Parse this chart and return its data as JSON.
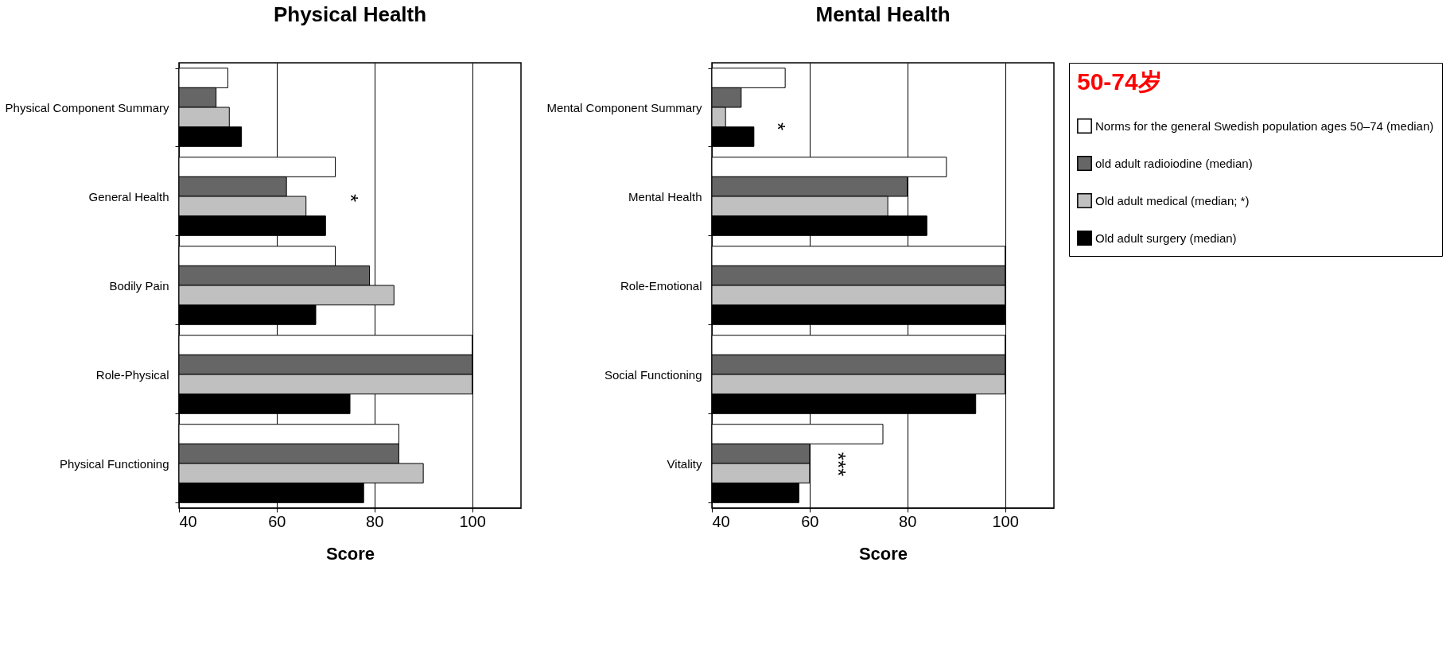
{
  "chart_data": [
    {
      "type": "bar",
      "orientation": "horizontal",
      "title": "Physical Health",
      "xlabel": "Score",
      "categories": [
        "Physical Component Summary",
        "General Health",
        "Bodily Pain",
        "Role-Physical",
        "Physical Functioning"
      ],
      "series": [
        {
          "name": "Norms for the general Swedish population ages 50–74 (median)",
          "color": "#ffffff",
          "values": [
            50,
            72,
            72,
            100,
            85
          ]
        },
        {
          "name": "old adult radioiodine (median)",
          "color": "#666666",
          "values": [
            47.6,
            62,
            79,
            100,
            85
          ]
        },
        {
          "name": "Old adult medical (median; *)",
          "color": "#c0c0c0",
          "values": [
            50.3,
            66,
            84,
            100,
            90
          ]
        },
        {
          "name": "Old adult surgery (median)",
          "color": "#000000",
          "values": [
            52.8,
            70,
            68,
            75,
            77.8
          ]
        }
      ],
      "xlim": [
        40,
        110
      ],
      "xticks": [
        40,
        60,
        80,
        100
      ],
      "grid": "x",
      "legend": "right",
      "annotations": [
        "*"
      ]
    },
    {
      "type": "bar",
      "orientation": "horizontal",
      "title": "Mental Health",
      "xlabel": "Score",
      "legend": "right",
      "legend_title": "50-74岁",
      "categories": [
        "Mental Component Summary",
        "Mental Health",
        "Role-Emotional",
        "Social Functioning",
        "Vitality"
      ],
      "series": [
        {
          "name": "Norms for the general Swedish population ages 50–74 (median)",
          "color": "#ffffff",
          "values": [
            55,
            88,
            100,
            100,
            75
          ]
        },
        {
          "name": "old adult radioiodine (median)",
          "color": "#666666",
          "values": [
            46,
            80,
            100,
            100,
            60
          ]
        },
        {
          "name": "Old adult medical (median; *)",
          "color": "#c0c0c0",
          "values": [
            42.8,
            76,
            100,
            100,
            60
          ]
        },
        {
          "name": "Old adult surgery (median)",
          "color": "#000000",
          "values": [
            48.6,
            84,
            100,
            94,
            57.8
          ]
        }
      ],
      "xlim": [
        40,
        110
      ],
      "xticks": [
        40,
        60,
        80,
        100
      ],
      "grid": "x",
      "annotations": [
        "*",
        "***"
      ]
    }
  ]
}
